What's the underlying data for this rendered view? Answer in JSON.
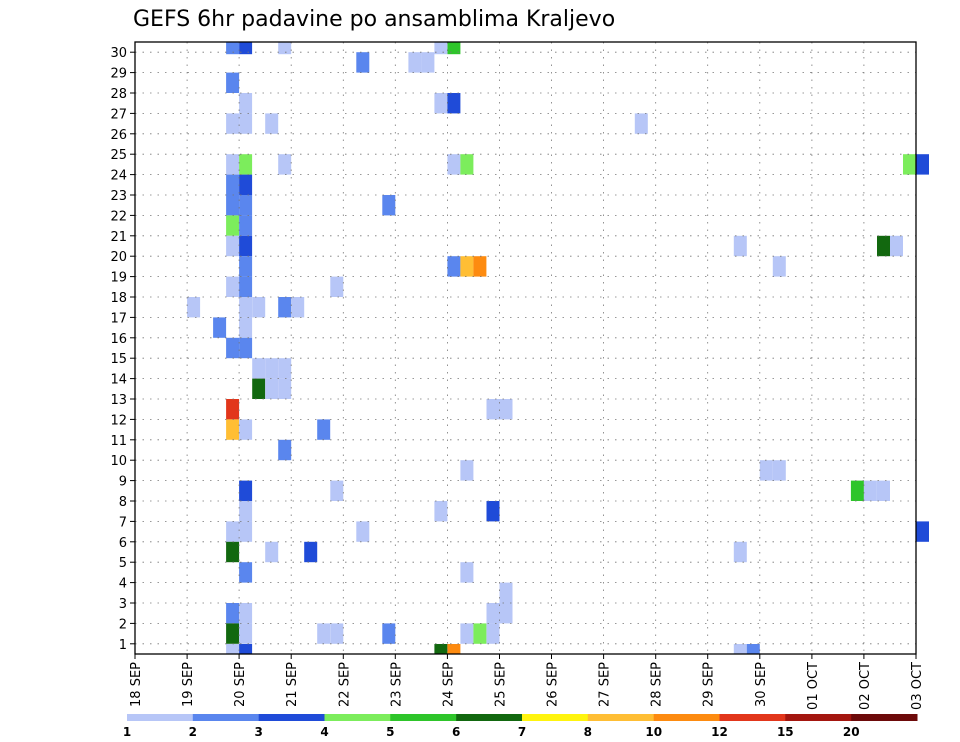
{
  "chart_data": {
    "type": "heatmap",
    "title": "GEFS 6hr padavine po ansamblima Kraljevo",
    "x_tick_labels": [
      "18 SEP",
      "19 SEP",
      "20 SEP",
      "21 SEP",
      "22 SEP",
      "23 SEP",
      "24 SEP",
      "25 SEP",
      "26 SEP",
      "27 SEP",
      "28 SEP",
      "29 SEP",
      "30 SEP",
      "01 OCT",
      "02 OCT",
      "03 OCT"
    ],
    "y_tick_labels": [
      "1",
      "2",
      "3",
      "4",
      "5",
      "6",
      "7",
      "8",
      "9",
      "10",
      "11",
      "12",
      "13",
      "14",
      "15",
      "16",
      "17",
      "18",
      "19",
      "20",
      "21",
      "22",
      "23",
      "24",
      "25",
      "26",
      "27",
      "28",
      "29",
      "30"
    ],
    "grid": true,
    "colorbar": {
      "labels": [
        "1",
        "2",
        "3",
        "4",
        "5",
        "6",
        "7",
        "8",
        "10",
        "12",
        "15",
        "20"
      ],
      "colors": [
        "#b7c6f7",
        "#5a86ee",
        "#1f4bd8",
        "#7ced5c",
        "#2ec52a",
        "#12680f",
        "#fff40e",
        "#ffbe34",
        "#fd8b10",
        "#e2361b",
        "#a4160f",
        "#6d0a0a"
      ]
    },
    "cells_note_units": "x = day index from 18 SEP (step 0.25 = 6 h), y = ensemble member, c = color class",
    "cells": [
      {
        "x": 1.75,
        "y": 0,
        "c": 0
      },
      {
        "x": 2.0,
        "y": 0,
        "c": 2
      },
      {
        "x": 2.75,
        "y": 30,
        "c": 0
      },
      {
        "x": 3.5,
        "y": 1,
        "c": 0
      },
      {
        "x": 3.75,
        "y": 1,
        "c": 0
      },
      {
        "x": 2.0,
        "y": 30,
        "c": 2
      },
      {
        "x": 1.75,
        "y": 30,
        "c": 1
      },
      {
        "x": 4.25,
        "y": 29,
        "c": 1
      },
      {
        "x": 5.25,
        "y": 29,
        "c": 0
      },
      {
        "x": 5.5,
        "y": 29,
        "c": 0
      },
      {
        "x": 6.0,
        "y": 30,
        "c": 4
      },
      {
        "x": 5.75,
        "y": 30,
        "c": 0
      },
      {
        "x": 1.75,
        "y": 28,
        "c": 1
      },
      {
        "x": 2.0,
        "y": 27,
        "c": 0
      },
      {
        "x": 5.75,
        "y": 27,
        "c": 0
      },
      {
        "x": 6.0,
        "y": 27,
        "c": 2
      },
      {
        "x": 1.75,
        "y": 26,
        "c": 0
      },
      {
        "x": 2.0,
        "y": 26,
        "c": 0
      },
      {
        "x": 2.5,
        "y": 26,
        "c": 0
      },
      {
        "x": 9.6,
        "y": 26,
        "c": 0
      },
      {
        "x": 1.75,
        "y": 24,
        "c": 0
      },
      {
        "x": 2.0,
        "y": 24,
        "c": 3
      },
      {
        "x": 2.75,
        "y": 24,
        "c": 0
      },
      {
        "x": 6.0,
        "y": 24,
        "c": 0
      },
      {
        "x": 6.25,
        "y": 24,
        "c": 3
      },
      {
        "x": 14.75,
        "y": 24,
        "c": 3
      },
      {
        "x": 15.0,
        "y": 24,
        "c": 2
      },
      {
        "x": 1.75,
        "y": 23,
        "c": 1
      },
      {
        "x": 2.0,
        "y": 23,
        "c": 2
      },
      {
        "x": 1.75,
        "y": 22,
        "c": 1
      },
      {
        "x": 2.0,
        "y": 22,
        "c": 1
      },
      {
        "x": 4.75,
        "y": 22,
        "c": 1
      },
      {
        "x": 1.75,
        "y": 21,
        "c": 3
      },
      {
        "x": 2.0,
        "y": 21,
        "c": 1
      },
      {
        "x": 1.75,
        "y": 20,
        "c": 0
      },
      {
        "x": 2.0,
        "y": 20,
        "c": 2
      },
      {
        "x": 11.5,
        "y": 20,
        "c": 0
      },
      {
        "x": 14.25,
        "y": 20,
        "c": 5
      },
      {
        "x": 14.5,
        "y": 20,
        "c": 0
      },
      {
        "x": 2.0,
        "y": 19,
        "c": 1
      },
      {
        "x": 6.0,
        "y": 19,
        "c": 1
      },
      {
        "x": 6.25,
        "y": 19,
        "c": 7
      },
      {
        "x": 6.5,
        "y": 19,
        "c": 8
      },
      {
        "x": 12.25,
        "y": 19,
        "c": 0
      },
      {
        "x": 1.75,
        "y": 18,
        "c": 0
      },
      {
        "x": 2.0,
        "y": 18,
        "c": 1
      },
      {
        "x": 3.75,
        "y": 18,
        "c": 0
      },
      {
        "x": 1.0,
        "y": 17,
        "c": 0
      },
      {
        "x": 2.0,
        "y": 17,
        "c": 0
      },
      {
        "x": 2.25,
        "y": 17,
        "c": 0
      },
      {
        "x": 2.75,
        "y": 17,
        "c": 1
      },
      {
        "x": 3.0,
        "y": 17,
        "c": 0
      },
      {
        "x": 1.5,
        "y": 16,
        "c": 1
      },
      {
        "x": 2.0,
        "y": 16,
        "c": 0
      },
      {
        "x": 1.75,
        "y": 15,
        "c": 1
      },
      {
        "x": 2.0,
        "y": 15,
        "c": 1
      },
      {
        "x": 2.25,
        "y": 14,
        "c": 0
      },
      {
        "x": 2.5,
        "y": 14,
        "c": 0
      },
      {
        "x": 2.75,
        "y": 14,
        "c": 0
      },
      {
        "x": 2.25,
        "y": 13,
        "c": 5
      },
      {
        "x": 2.5,
        "y": 13,
        "c": 0
      },
      {
        "x": 2.75,
        "y": 13,
        "c": 0
      },
      {
        "x": 1.75,
        "y": 12,
        "c": 9
      },
      {
        "x": 6.75,
        "y": 12,
        "c": 0
      },
      {
        "x": 7.0,
        "y": 12,
        "c": 0
      },
      {
        "x": 1.75,
        "y": 11,
        "c": 7
      },
      {
        "x": 2.0,
        "y": 11,
        "c": 0
      },
      {
        "x": 3.5,
        "y": 11,
        "c": 1
      },
      {
        "x": 2.75,
        "y": 10,
        "c": 1
      },
      {
        "x": 6.25,
        "y": 9,
        "c": 0
      },
      {
        "x": 12.0,
        "y": 9,
        "c": 0
      },
      {
        "x": 12.25,
        "y": 9,
        "c": 0
      },
      {
        "x": 2.0,
        "y": 8,
        "c": 2
      },
      {
        "x": 3.75,
        "y": 8,
        "c": 0
      },
      {
        "x": 13.75,
        "y": 8,
        "c": 4
      },
      {
        "x": 14.0,
        "y": 8,
        "c": 0
      },
      {
        "x": 14.25,
        "y": 8,
        "c": 0
      },
      {
        "x": 2.0,
        "y": 7,
        "c": 0
      },
      {
        "x": 5.75,
        "y": 7,
        "c": 0
      },
      {
        "x": 6.75,
        "y": 7,
        "c": 2
      },
      {
        "x": 1.75,
        "y": 6,
        "c": 0
      },
      {
        "x": 2.0,
        "y": 6,
        "c": 0
      },
      {
        "x": 4.25,
        "y": 6,
        "c": 0
      },
      {
        "x": 15.0,
        "y": 6,
        "c": 2
      },
      {
        "x": 1.75,
        "y": 5,
        "c": 5
      },
      {
        "x": 2.5,
        "y": 5,
        "c": 0
      },
      {
        "x": 3.25,
        "y": 5,
        "c": 2
      },
      {
        "x": 11.5,
        "y": 5,
        "c": 0
      },
      {
        "x": 2.0,
        "y": 4,
        "c": 1
      },
      {
        "x": 6.25,
        "y": 4,
        "c": 0
      },
      {
        "x": 7.0,
        "y": 3,
        "c": 0
      },
      {
        "x": 1.75,
        "y": 2,
        "c": 1
      },
      {
        "x": 2.0,
        "y": 2,
        "c": 0
      },
      {
        "x": 6.75,
        "y": 2,
        "c": 0
      },
      {
        "x": 7.0,
        "y": 2,
        "c": 0
      },
      {
        "x": 1.75,
        "y": 1,
        "c": 5
      },
      {
        "x": 2.0,
        "y": 1,
        "c": 0
      },
      {
        "x": 4.75,
        "y": 1,
        "c": 1
      },
      {
        "x": 6.25,
        "y": 1,
        "c": 0
      },
      {
        "x": 6.5,
        "y": 1,
        "c": 3
      },
      {
        "x": 6.75,
        "y": 1,
        "c": 0
      },
      {
        "x": 5.75,
        "y": 0,
        "c": 5
      },
      {
        "x": 6.0,
        "y": 0,
        "c": 8
      },
      {
        "x": 11.5,
        "y": 0,
        "c": 0
      },
      {
        "x": 11.75,
        "y": 0,
        "c": 1
      }
    ]
  }
}
